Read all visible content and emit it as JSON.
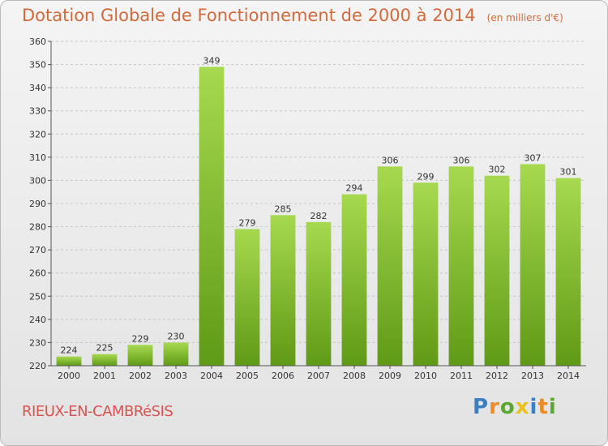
{
  "title": "Dotation Globale de Fonctionnement de 2000 à 2014",
  "subtitle": "(en milliers d'€)",
  "commune": "RIEUX-EN-CAMBRéSIS",
  "logo": {
    "text": "Proxiti",
    "letters": [
      {
        "char": "P",
        "color": "#3a7fc4"
      },
      {
        "char": "r",
        "color": "#f08a24"
      },
      {
        "char": "o",
        "color": "#5aa832"
      },
      {
        "char": "x",
        "color": "#e8c21a"
      },
      {
        "char": "i",
        "color": "#3a7fc4"
      },
      {
        "char": "t",
        "color": "#f08a24"
      },
      {
        "char": "i",
        "color": "#5aa832"
      }
    ]
  },
  "chart_data": {
    "type": "bar",
    "categories": [
      "2000",
      "2001",
      "2002",
      "2003",
      "2004",
      "2005",
      "2006",
      "2007",
      "2008",
      "2009",
      "2010",
      "2011",
      "2012",
      "2013",
      "2014"
    ],
    "values": [
      224,
      225,
      229,
      230,
      349,
      279,
      285,
      282,
      294,
      306,
      299,
      306,
      302,
      307,
      301
    ],
    "ylim": [
      220,
      360
    ],
    "yticks": [
      220,
      230,
      240,
      250,
      260,
      270,
      280,
      290,
      300,
      310,
      320,
      330,
      340,
      350,
      360
    ],
    "grid": true,
    "bar_color": "#7fbf2e"
  }
}
